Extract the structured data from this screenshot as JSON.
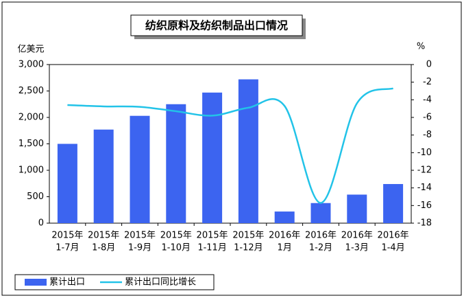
{
  "chart_data": {
    "type": "bar-line",
    "title": "纺织原料及纺织制品出口情况",
    "y_unit": "亿美元",
    "y2_unit": "%",
    "categories": [
      [
        "2015年",
        "1-7月"
      ],
      [
        "2015年",
        "1-8月"
      ],
      [
        "2015年",
        "1-9月"
      ],
      [
        "2015年",
        "1-10月"
      ],
      [
        "2015年",
        "1-11月"
      ],
      [
        "2015年",
        "1-12月"
      ],
      [
        "2016年",
        "1月"
      ],
      [
        "2016年",
        "1-2月"
      ],
      [
        "2016年",
        "1-3月"
      ],
      [
        "2016年",
        "1-4月"
      ]
    ],
    "series": [
      {
        "name": "累计出口",
        "type": "bar",
        "color": "#3c64f0",
        "values": [
          1500,
          1770,
          2030,
          2250,
          2470,
          2720,
          220,
          380,
          540,
          740
        ]
      },
      {
        "name": "累计出口同比增长",
        "type": "line",
        "axis": "y2",
        "color": "#22c3e8",
        "values": [
          -4.6,
          -4.75,
          -4.8,
          -5.3,
          -5.8,
          -4.9,
          -4.7,
          -15.7,
          -4.4,
          -2.7
        ]
      }
    ],
    "ylim": [
      0,
      3000
    ],
    "yticks": [
      0,
      500,
      {
        "value": 1000,
        "label": "1,000"
      },
      {
        "value": 1500,
        "label": "1,500"
      },
      {
        "value": 2000,
        "label": "2,000"
      },
      {
        "value": 2500,
        "label": "2,500"
      },
      {
        "value": 3000,
        "label": "3,000"
      }
    ],
    "y2lim": [
      -18,
      0
    ],
    "y2ticks": [
      0,
      -2,
      -4,
      -6,
      -8,
      -10,
      -12,
      -14,
      -16,
      -18
    ],
    "legend": "bottom-left"
  }
}
